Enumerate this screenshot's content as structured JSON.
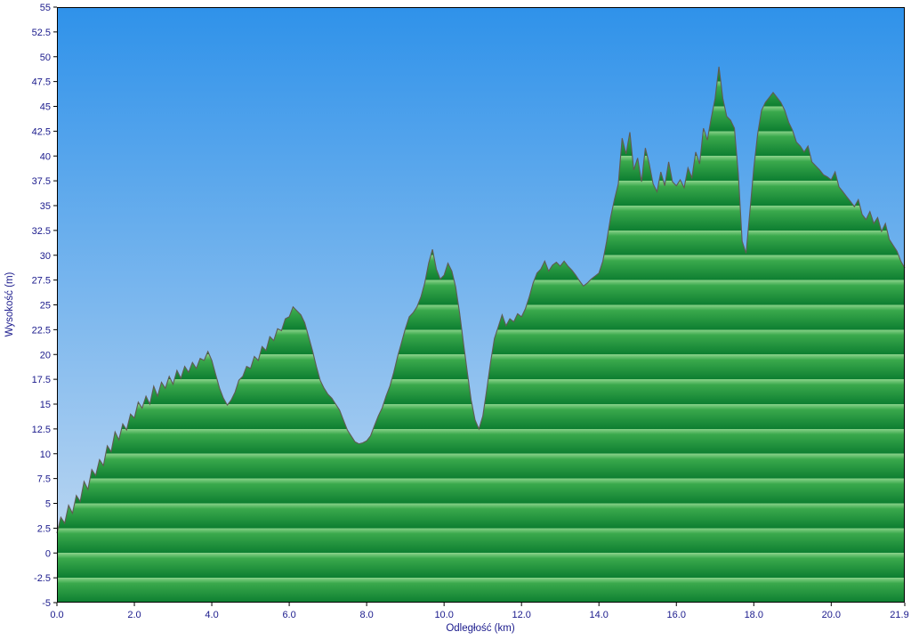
{
  "chart_data": {
    "type": "area",
    "title": "",
    "xlabel": "Odległość  (km)",
    "ylabel": "Wysokość (m)",
    "xlim": [
      0,
      21.9
    ],
    "ylim": [
      -5,
      55
    ],
    "grid": false,
    "legend": "none",
    "band_interval_m": 2.5,
    "x_start": 0,
    "x_step": 0.1,
    "x_tick_values": [
      0,
      2,
      4,
      6,
      8,
      10,
      12,
      14,
      16,
      18,
      20,
      21.9
    ],
    "x_tick_labels": [
      "0.0",
      "2.0",
      "4.0",
      "6.0",
      "8.0",
      "10.0",
      "12.0",
      "14.0",
      "16.0",
      "18.0",
      "20.0",
      "21.9"
    ],
    "y_tick_values": [
      55,
      52.5,
      50,
      47.5,
      45,
      42.5,
      40,
      37.5,
      35,
      32.5,
      30,
      27.5,
      25,
      22.5,
      20,
      17.5,
      15,
      12.5,
      10,
      7.5,
      5,
      2.5,
      0,
      -2.5,
      -5
    ],
    "y_tick_labels": [
      "55",
      "52.5",
      "50",
      "47.5",
      "45",
      "42.5",
      "40",
      "37.5",
      "35",
      "32.5",
      "30",
      "27.5",
      "25",
      "22.5",
      "20",
      "17.5",
      "15",
      "12.5",
      "10",
      "7.5",
      "5",
      "2.5",
      "0",
      "-2.5",
      "-5"
    ],
    "series_name": "elevation-profile",
    "elevations": [
      2.0,
      3.6,
      3.0,
      4.8,
      4.0,
      5.8,
      5.2,
      7.2,
      6.4,
      8.4,
      7.8,
      9.4,
      8.8,
      10.8,
      10.2,
      12.2,
      11.4,
      13.0,
      12.4,
      14.0,
      13.6,
      15.2,
      14.6,
      15.8,
      15.0,
      16.8,
      15.8,
      17.2,
      16.6,
      17.8,
      17.0,
      18.4,
      17.6,
      18.8,
      18.2,
      19.2,
      18.6,
      19.6,
      19.4,
      20.3,
      19.4,
      18.0,
      16.6,
      15.6,
      14.9,
      15.4,
      16.2,
      17.4,
      17.8,
      18.8,
      18.6,
      19.8,
      19.4,
      20.8,
      20.4,
      21.8,
      21.4,
      22.6,
      22.4,
      23.6,
      23.8,
      24.8,
      24.4,
      24.0,
      23.2,
      21.8,
      20.4,
      18.8,
      17.4,
      16.6,
      16.0,
      15.6,
      15.0,
      14.4,
      13.4,
      12.4,
      11.8,
      11.2,
      11.0,
      11.1,
      11.3,
      11.8,
      12.8,
      13.8,
      14.6,
      15.8,
      16.8,
      18.2,
      19.8,
      21.2,
      22.6,
      23.8,
      24.2,
      24.8,
      25.8,
      27.2,
      29.2,
      30.6,
      28.6,
      27.6,
      28.0,
      29.2,
      28.4,
      26.8,
      24.2,
      21.2,
      18.2,
      15.4,
      13.4,
      12.5,
      13.8,
      16.4,
      19.2,
      21.6,
      22.8,
      24.0,
      22.9,
      23.6,
      23.3,
      24.1,
      23.8,
      24.6,
      25.8,
      27.2,
      28.2,
      28.6,
      29.4,
      28.4,
      29.0,
      29.3,
      28.9,
      29.4,
      28.9,
      28.5,
      28.0,
      27.4,
      26.9,
      27.2,
      27.6,
      27.9,
      28.2,
      29.4,
      31.4,
      33.8,
      35.6,
      37.2,
      41.8,
      40.2,
      42.4,
      38.6,
      39.8,
      37.4,
      40.8,
      39.2,
      37.2,
      36.4,
      38.4,
      37.0,
      39.4,
      37.4,
      37.0,
      37.6,
      36.8,
      38.8,
      37.8,
      40.4,
      39.2,
      42.8,
      41.6,
      43.8,
      45.8,
      49.0,
      45.8,
      44.0,
      43.6,
      42.8,
      38.2,
      31.4,
      30.2,
      34.4,
      38.8,
      42.2,
      44.6,
      45.4,
      45.9,
      46.4,
      45.9,
      45.4,
      44.6,
      43.4,
      42.6,
      41.4,
      41.0,
      40.4,
      41.0,
      39.4,
      39.0,
      38.6,
      38.1,
      37.9,
      37.6,
      38.4,
      36.9,
      36.4,
      35.9,
      35.4,
      34.9,
      35.6,
      34.1,
      33.6,
      34.4,
      33.2,
      33.8,
      32.4,
      33.2,
      31.6,
      31.0,
      30.4,
      29.4,
      28.7
    ],
    "colors": {
      "sky_top": "#2f92ea",
      "sky_bottom": "#c9ddf2",
      "band_light": "#8ad28a",
      "band_mid": "#3aa94c",
      "band_dark": "#0d7e31",
      "profile_outline": "#5f5b52",
      "plot_border": "#000000",
      "tick_color": "#000000",
      "label_color": "#1a1a8c"
    }
  }
}
